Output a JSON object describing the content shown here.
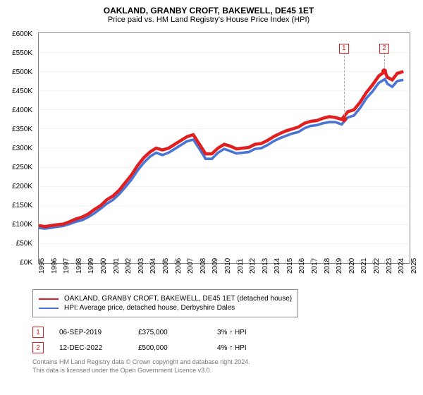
{
  "title": "OAKLAND, GRANBY CROFT, BAKEWELL, DE45 1ET",
  "subtitle": "Price paid vs. HM Land Registry's House Price Index (HPI)",
  "chart": {
    "type": "line",
    "xlim": [
      1995,
      2025
    ],
    "ylim": [
      0,
      600
    ],
    "ytick_step": 50,
    "ytick_prefix": "£",
    "ytick_suffix": "K",
    "x_ticks": [
      1995,
      1996,
      1997,
      1998,
      1999,
      2000,
      2001,
      2002,
      2003,
      2004,
      2005,
      2006,
      2007,
      2008,
      2009,
      2010,
      2011,
      2012,
      2013,
      2014,
      2015,
      2016,
      2017,
      2018,
      2019,
      2020,
      2021,
      2022,
      2023,
      2024,
      2025
    ],
    "background_color": "#ffffff",
    "grid_color": "#dcdcdc",
    "axis_color": "#888888",
    "title_fontsize": 12,
    "label_fontsize": 10,
    "series": [
      {
        "name": "OAKLAND, GRANBY CROFT, BAKEWELL, DE45 1ET (detached house)",
        "color": "#e02020",
        "width": 1.5,
        "data": [
          [
            1995,
            98
          ],
          [
            1995.5,
            95
          ],
          [
            1996,
            98
          ],
          [
            1996.5,
            100
          ],
          [
            1997,
            102
          ],
          [
            1997.5,
            108
          ],
          [
            1998,
            115
          ],
          [
            1998.5,
            120
          ],
          [
            1999,
            128
          ],
          [
            1999.5,
            140
          ],
          [
            2000,
            150
          ],
          [
            2000.5,
            165
          ],
          [
            2001,
            175
          ],
          [
            2001.5,
            190
          ],
          [
            2002,
            210
          ],
          [
            2002.5,
            230
          ],
          [
            2003,
            255
          ],
          [
            2003.5,
            275
          ],
          [
            2004,
            290
          ],
          [
            2004.5,
            300
          ],
          [
            2005,
            295
          ],
          [
            2005.5,
            300
          ],
          [
            2006,
            310
          ],
          [
            2006.5,
            320
          ],
          [
            2007,
            330
          ],
          [
            2007.5,
            335
          ],
          [
            2008,
            310
          ],
          [
            2008.5,
            285
          ],
          [
            2009,
            285
          ],
          [
            2009.5,
            300
          ],
          [
            2010,
            310
          ],
          [
            2010.5,
            305
          ],
          [
            2011,
            298
          ],
          [
            2011.5,
            300
          ],
          [
            2012,
            302
          ],
          [
            2012.5,
            310
          ],
          [
            2013,
            312
          ],
          [
            2013.5,
            320
          ],
          [
            2014,
            330
          ],
          [
            2014.5,
            338
          ],
          [
            2015,
            345
          ],
          [
            2015.5,
            350
          ],
          [
            2016,
            355
          ],
          [
            2016.5,
            365
          ],
          [
            2017,
            370
          ],
          [
            2017.5,
            372
          ],
          [
            2018,
            378
          ],
          [
            2018.5,
            382
          ],
          [
            2019,
            380
          ],
          [
            2019.5,
            375
          ],
          [
            2020,
            395
          ],
          [
            2020.5,
            400
          ],
          [
            2021,
            420
          ],
          [
            2021.5,
            445
          ],
          [
            2022,
            465
          ],
          [
            2022.5,
            488
          ],
          [
            2023,
            500
          ],
          [
            2023.2,
            485
          ],
          [
            2023.6,
            478
          ],
          [
            2024,
            495
          ],
          [
            2024.5,
            500
          ]
        ]
      },
      {
        "name": "HPI: Average price, detached house, Derbyshire Dales",
        "color": "#4a75d4",
        "width": 1.2,
        "data": [
          [
            1995,
            92
          ],
          [
            1995.5,
            90
          ],
          [
            1996,
            92
          ],
          [
            1996.5,
            95
          ],
          [
            1997,
            97
          ],
          [
            1997.5,
            102
          ],
          [
            1998,
            108
          ],
          [
            1998.5,
            112
          ],
          [
            1999,
            120
          ],
          [
            1999.5,
            130
          ],
          [
            2000,
            142
          ],
          [
            2000.5,
            155
          ],
          [
            2001,
            165
          ],
          [
            2001.5,
            180
          ],
          [
            2002,
            198
          ],
          [
            2002.5,
            218
          ],
          [
            2003,
            242
          ],
          [
            2003.5,
            262
          ],
          [
            2004,
            278
          ],
          [
            2004.5,
            288
          ],
          [
            2005,
            282
          ],
          [
            2005.5,
            288
          ],
          [
            2006,
            298
          ],
          [
            2006.5,
            308
          ],
          [
            2007,
            318
          ],
          [
            2007.5,
            322
          ],
          [
            2008,
            298
          ],
          [
            2008.5,
            272
          ],
          [
            2009,
            272
          ],
          [
            2009.5,
            288
          ],
          [
            2010,
            298
          ],
          [
            2010.5,
            292
          ],
          [
            2011,
            286
          ],
          [
            2011.5,
            288
          ],
          [
            2012,
            290
          ],
          [
            2012.5,
            298
          ],
          [
            2013,
            300
          ],
          [
            2013.5,
            308
          ],
          [
            2014,
            318
          ],
          [
            2014.5,
            326
          ],
          [
            2015,
            332
          ],
          [
            2015.5,
            338
          ],
          [
            2016,
            342
          ],
          [
            2016.5,
            352
          ],
          [
            2017,
            358
          ],
          [
            2017.5,
            360
          ],
          [
            2018,
            365
          ],
          [
            2018.5,
            368
          ],
          [
            2019,
            368
          ],
          [
            2019.5,
            362
          ],
          [
            2020,
            380
          ],
          [
            2020.5,
            385
          ],
          [
            2021,
            405
          ],
          [
            2021.5,
            430
          ],
          [
            2022,
            448
          ],
          [
            2022.5,
            470
          ],
          [
            2023,
            480
          ],
          [
            2023.2,
            468
          ],
          [
            2023.6,
            460
          ],
          [
            2024,
            475
          ],
          [
            2024.5,
            478
          ]
        ]
      }
    ],
    "markers": [
      {
        "n": "1",
        "x": 2019.68,
        "y": 375,
        "box_y": 560,
        "color": "#e02020",
        "line_color": "#aaaaaa"
      },
      {
        "n": "2",
        "x": 2022.95,
        "y": 500,
        "box_y": 560,
        "color": "#e02020",
        "line_color": "#aaaaaa"
      }
    ]
  },
  "legend": {
    "border_color": "#888888",
    "items": [
      {
        "color": "#e02020",
        "label": "OAKLAND, GRANBY CROFT, BAKEWELL, DE45 1ET (detached house)"
      },
      {
        "color": "#4a75d4",
        "label": "HPI: Average price, detached house, Derbyshire Dales"
      }
    ]
  },
  "annotations": [
    {
      "n": "1",
      "color": "#e02020",
      "date": "06-SEP-2019",
      "price": "£375,000",
      "delta": "3% ↑ HPI"
    },
    {
      "n": "2",
      "color": "#e02020",
      "date": "12-DEC-2022",
      "price": "£500,000",
      "delta": "4% ↑ HPI"
    }
  ],
  "footer": {
    "line1": "Contains HM Land Registry data © Crown copyright and database right 2024.",
    "line2": "This data is licensed under the Open Government Licence v3.0."
  }
}
